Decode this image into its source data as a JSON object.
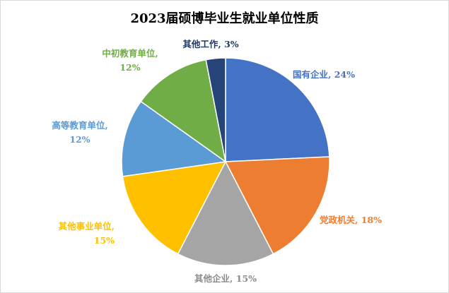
{
  "chart_data": {
    "type": "pie",
    "title": "2023届硕博毕业生就业单位性质",
    "unit": "%",
    "slices": [
      {
        "name": "国有企业",
        "value": 24,
        "color": "#4472C4",
        "label_lines": [
          "国有企业, 24%"
        ],
        "label_color": "#4472C4"
      },
      {
        "name": "党政机关",
        "value": 18,
        "color": "#ED7D31",
        "label_lines": [
          "党政机关, 18%"
        ],
        "label_color": "#ED7D31"
      },
      {
        "name": "其他企业",
        "value": 15,
        "color": "#A5A5A5",
        "label_lines": [
          "其他企业, 15%"
        ],
        "label_color": "#8c8c8c"
      },
      {
        "name": "其他事业单位",
        "value": 15,
        "color": "#FFC000",
        "label_lines": [
          "其他事业单位,",
          "15%"
        ],
        "label_color": "#FFC000"
      },
      {
        "name": "高等教育单位",
        "value": 12,
        "color": "#5B9BD5",
        "label_lines": [
          "高等教育单位,",
          "12%"
        ],
        "label_color": "#5B9BD5"
      },
      {
        "name": "中初教育单位",
        "value": 12,
        "color": "#70AD47",
        "label_lines": [
          "中初教育单位,",
          "12%"
        ],
        "label_color": "#70AD47"
      },
      {
        "name": "其他工作",
        "value": 3,
        "color": "#264478",
        "label_lines": [
          "其他工作, 3%"
        ],
        "label_color": "#1f3864"
      }
    ],
    "legend": "none",
    "start_angle": "12 o'clock",
    "direction": "clockwise"
  }
}
